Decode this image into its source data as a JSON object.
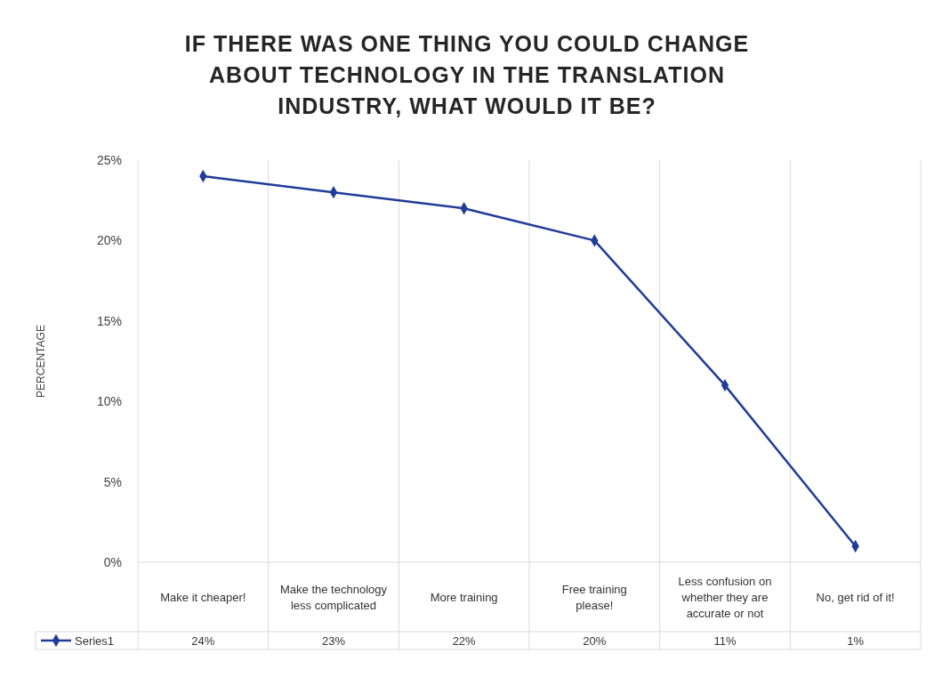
{
  "chart_data": {
    "type": "line",
    "title": "IF THERE WAS ONE THING YOU COULD CHANGE ABOUT TECHNOLOGY IN THE TRANSLATION INDUSTRY, WHAT WOULD IT BE?",
    "ylabel": "PERCENTAGE",
    "categories": [
      "Make it cheaper!",
      "Make the technology less complicated",
      "More training",
      "Free training please!",
      "Less confusion on whether they are accurate or not",
      "No, get rid of it!"
    ],
    "series": [
      {
        "name": "Series1",
        "color": "#1f3c99",
        "values": [
          24,
          23,
          22,
          20,
          11,
          1
        ],
        "value_labels": [
          "24%",
          "23%",
          "22%",
          "20%",
          "11%",
          "1%"
        ]
      }
    ],
    "ylim": [
      0,
      25
    ],
    "yticks": [
      {
        "value": 0,
        "label": "0%"
      },
      {
        "value": 5,
        "label": "5%"
      },
      {
        "value": 10,
        "label": "10%"
      },
      {
        "value": 15,
        "label": "15%"
      },
      {
        "value": 20,
        "label": "20%"
      },
      {
        "value": 25,
        "label": "25%"
      }
    ],
    "grid": "x",
    "legend": "bottom",
    "marker": "diamond",
    "line_style": "solid"
  }
}
